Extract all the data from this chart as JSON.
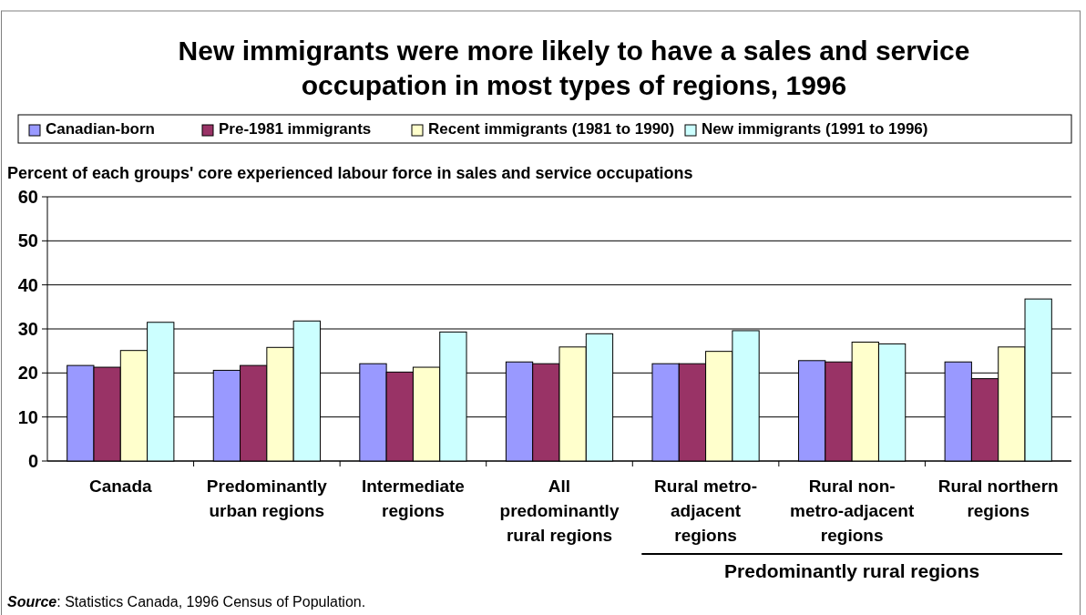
{
  "chart_data": {
    "type": "bar",
    "title": "New immigrants were more likely to have a sales and service occupation in most types of regions, 1996",
    "ylabel": "Percent of each groups' core experienced labour force in sales and service occupations",
    "categories": [
      "Canada",
      "Predominantly urban regions",
      "Intermediate regions",
      "All predominantly rural regions",
      "Rural metro-adjacent regions",
      "Rural non-metro-adjacent regions",
      "Rural northern regions"
    ],
    "series": [
      {
        "name": "Canadian-born",
        "color": "#9999ff",
        "values": [
          21.7,
          20.6,
          22.1,
          22.5,
          22.1,
          22.8,
          22.5
        ]
      },
      {
        "name": "Pre-1981 immigrants",
        "color": "#993366",
        "values": [
          21.3,
          21.7,
          20.2,
          22.1,
          22.1,
          22.5,
          18.7
        ]
      },
      {
        "name": "Recent immigrants (1981 to 1990)",
        "color": "#ffffcc",
        "values": [
          25.1,
          25.8,
          21.3,
          25.9,
          24.9,
          27.0,
          25.9
        ]
      },
      {
        "name": "New immigrants (1991 to 1996)",
        "color": "#ccffff",
        "values": [
          31.5,
          31.8,
          29.3,
          28.9,
          29.6,
          26.6,
          36.8
        ]
      }
    ],
    "ylim": [
      0,
      60
    ],
    "yticks": [
      0,
      10,
      20,
      30,
      40,
      50,
      60
    ],
    "grid": "y",
    "legend": "top",
    "annotations": [
      "Predominantly rural regions",
      "Source: Statistics Canada, 1996 Census of Population."
    ]
  }
}
